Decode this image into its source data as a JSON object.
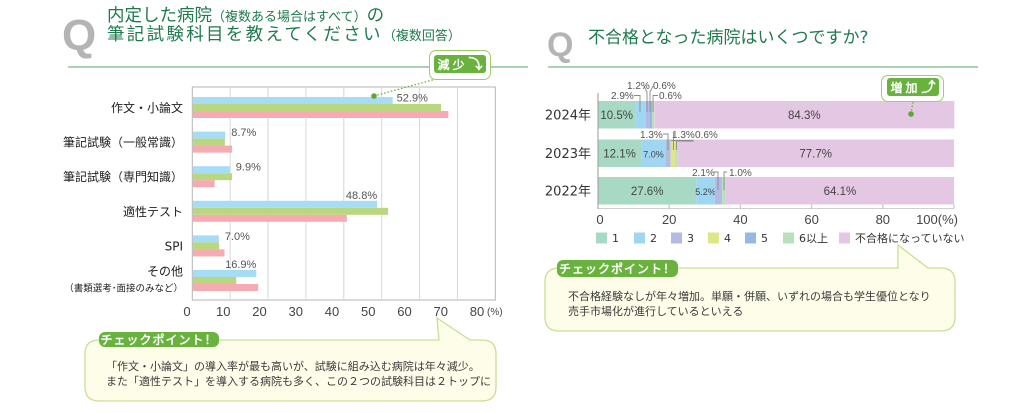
{
  "left_panel": {
    "q_mark": "Q",
    "title": {
      "line1_main": "内定した病院",
      "line1_note": "（複数ある場合はすべて）",
      "line1_tail": "の",
      "line2_main": "筆記試験科目を教えてください",
      "line2_note": "（複数回答）"
    },
    "trend_badge": {
      "label": "減少",
      "icon": "curved-arrow-down-icon",
      "glyph": "⤵"
    },
    "checkpoint": {
      "tag": "チェックポイント！",
      "lines": [
        "「作文・小論文」の導入率が最も高いが、試験に組み込む病院は年々減少。",
        "また「適性テスト」を導入する病院も多く、この２つの試験科目は２トップに"
      ]
    }
  },
  "right_panel": {
    "q_mark": "Q",
    "title": "不合格となった病院はいくつですか?",
    "trend_badge": {
      "label": "増加",
      "icon": "curved-arrow-up-icon",
      "glyph": "⤴"
    },
    "checkpoint": {
      "tag": "チェックポイント！",
      "lines": [
        "不合格経験なしが年々増加。単願・併願、いずれの場合も学生優位となり",
        "売手市場化が進行しているといえる"
      ]
    }
  },
  "colors": {
    "title": "#1f7a4e",
    "accent_green": "#6ab23e",
    "divider": "#a9d3b8",
    "callout_fill": "#fefde9",
    "callout_border": "#c9df95"
  },
  "chart_data": [
    {
      "type": "bar",
      "orientation": "horizontal",
      "title": "内定した病院（複数ある場合はすべて）の筆記試験科目を教えてください（複数回答）",
      "categories": [
        {
          "label": "作文・小論文"
        },
        {
          "label": "筆記試験（一般常識）"
        },
        {
          "label": "筆記試験（専門知識）"
        },
        {
          "label": "適性テスト"
        },
        {
          "label": "SPI"
        },
        {
          "label": "その他",
          "sublabel": "（書類選考･面接のみなど）"
        }
      ],
      "series": [
        {
          "color": "#a6dcf5",
          "values": [
            52.9,
            8.7,
            9.9,
            48.8,
            7.0,
            16.9
          ],
          "data_labels": [
            "52.9%",
            "8.7%",
            "9.9%",
            "48.8%",
            "7.0%",
            "16.9%"
          ]
        },
        {
          "color": "#b8d77f",
          "values": [
            65.7,
            8.6,
            10.5,
            51.7,
            7.1,
            11.6
          ]
        },
        {
          "color": "#f5abb1",
          "values": [
            67.6,
            10.5,
            5.9,
            40.8,
            8.5,
            17.4
          ]
        }
      ],
      "xlim": [
        0,
        80
      ],
      "xticks": [
        0,
        10,
        20,
        30,
        40,
        50,
        60,
        70,
        80
      ],
      "xtick_labels": [
        "0",
        "10",
        "20",
        "30",
        "40",
        "50",
        "60",
        "70",
        "80"
      ],
      "x_unit": "(%)",
      "xlabel": "",
      "ylabel": "",
      "grid": true,
      "legend": "none"
    },
    {
      "type": "bar",
      "orientation": "horizontal",
      "stacked": true,
      "title": "不合格となった病院はいくつですか?",
      "categories": [
        {
          "label": "2024年"
        },
        {
          "label": "2023年"
        },
        {
          "label": "2022年"
        }
      ],
      "series": [
        {
          "name": "1",
          "color": "#a8d9c5",
          "values": [
            10.5,
            12.1,
            27.6
          ],
          "data_labels": [
            "10.5%",
            "12.1%",
            "27.6%"
          ]
        },
        {
          "name": "2",
          "color": "#a0d6f2",
          "values": [
            2.9,
            7.0,
            5.2
          ],
          "data_labels": [
            "2.9%",
            "7.0%",
            "5.2%"
          ]
        },
        {
          "name": "3",
          "color": "#b3bbe4",
          "values": [
            1.2,
            1.3,
            2.1
          ],
          "data_labels": [
            "1.2%",
            "1.3%",
            "2.1%"
          ]
        },
        {
          "name": "4",
          "color": "#dfe68a",
          "values": [
            0,
            1.3,
            0
          ],
          "data_labels": [
            null,
            "1.3%",
            null
          ]
        },
        {
          "name": "5",
          "color": "#93b9e4",
          "values": [
            0.6,
            0,
            0
          ],
          "data_labels": [
            "0.6%",
            null,
            null
          ]
        },
        {
          "name": "6以上",
          "color": "#b8e0ba",
          "values": [
            0.6,
            0.6,
            1.0
          ],
          "data_labels": [
            "0.6%",
            "0.6%",
            "1.0%"
          ]
        },
        {
          "name": "不合格になっていない",
          "color": "#e4c7e2",
          "values": [
            84.3,
            77.7,
            64.1
          ],
          "data_labels": [
            "84.3%",
            "77.7%",
            "64.1%"
          ]
        }
      ],
      "xlim": [
        0,
        100
      ],
      "xticks": [
        0,
        20,
        40,
        60,
        80,
        100
      ],
      "xtick_labels": [
        "0",
        "20",
        "40",
        "60",
        "80",
        "100(%)"
      ],
      "xlabel": "",
      "ylabel": "",
      "grid": false,
      "legend": "bottom"
    }
  ]
}
